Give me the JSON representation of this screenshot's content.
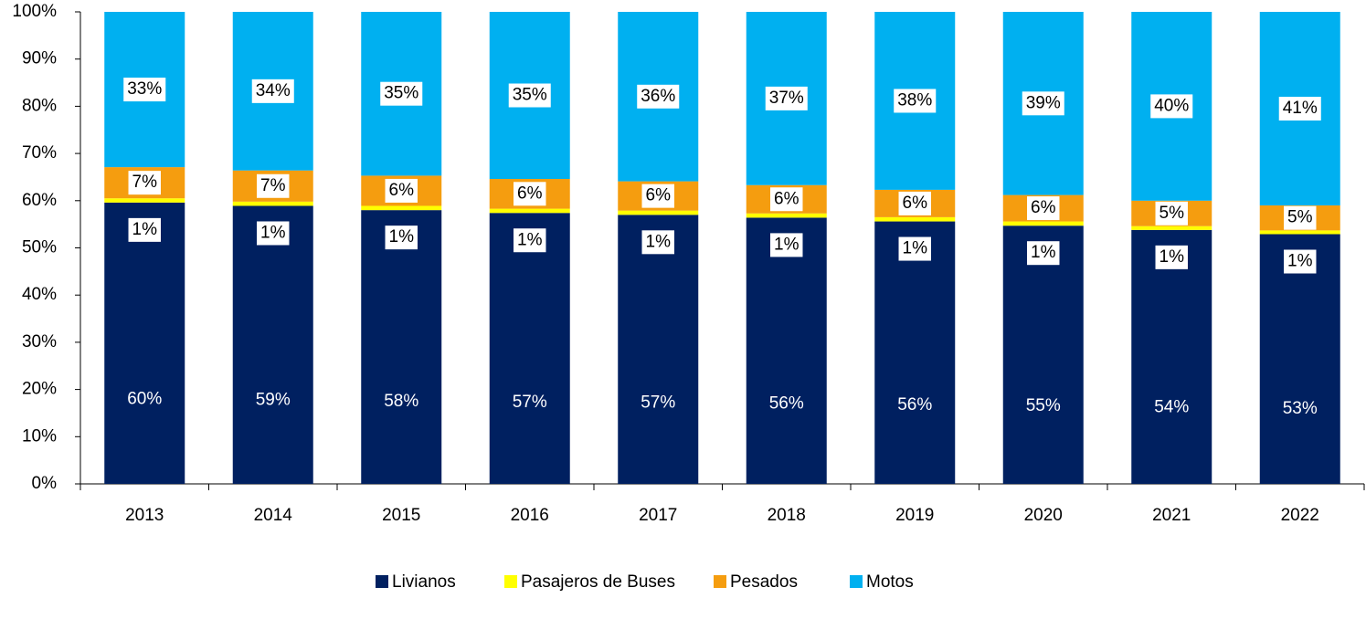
{
  "chart_data": {
    "type": "stacked_bar",
    "categories": [
      "2013",
      "2014",
      "2015",
      "2016",
      "2017",
      "2018",
      "2019",
      "2020",
      "2021",
      "2022"
    ],
    "series": [
      {
        "name": "Livianos",
        "color": "#002060",
        "values": [
          59.6,
          58.9,
          58.0,
          57.4,
          57.0,
          56.4,
          55.6,
          54.7,
          53.8,
          52.9
        ],
        "value_labels": [
          "60%",
          "59%",
          "58%",
          "57%",
          "57%",
          "56%",
          "56%",
          "55%",
          "54%",
          "53%"
        ]
      },
      {
        "name": "Pasajeros de Buses",
        "color": "#ffff00",
        "values": [
          0.9,
          0.9,
          0.9,
          0.9,
          0.9,
          0.9,
          0.9,
          0.9,
          0.8,
          0.8
        ],
        "value_labels": [
          "1%",
          "1%",
          "1%",
          "1%",
          "1%",
          "1%",
          "1%",
          "1%",
          "1%",
          "1%"
        ]
      },
      {
        "name": "Pesados",
        "color": "#f59d0f",
        "values": [
          6.6,
          6.6,
          6.4,
          6.3,
          6.2,
          6.0,
          5.8,
          5.6,
          5.4,
          5.3
        ],
        "value_labels": [
          "7%",
          "7%",
          "6%",
          "6%",
          "6%",
          "6%",
          "6%",
          "6%",
          "5%",
          "5%"
        ]
      },
      {
        "name": "Motos",
        "color": "#00b0f0",
        "values": [
          32.9,
          33.6,
          34.7,
          35.4,
          35.9,
          36.7,
          37.7,
          38.8,
          40.0,
          41.0
        ],
        "value_labels": [
          "33%",
          "34%",
          "35%",
          "35%",
          "36%",
          "37%",
          "38%",
          "39%",
          "40%",
          "41%"
        ]
      }
    ],
    "ylim": [
      0,
      100
    ],
    "yticks": [
      {
        "value": 0,
        "label": "0%"
      },
      {
        "value": 10,
        "label": "10%"
      },
      {
        "value": 20,
        "label": "20%"
      },
      {
        "value": 30,
        "label": "30%"
      },
      {
        "value": 40,
        "label": "40%"
      },
      {
        "value": 50,
        "label": "50%"
      },
      {
        "value": 60,
        "label": "60%"
      },
      {
        "value": 70,
        "label": "70%"
      },
      {
        "value": 80,
        "label": "80%"
      },
      {
        "value": 90,
        "label": "90%"
      },
      {
        "value": 100,
        "label": "100%"
      }
    ],
    "legend": "bottom"
  }
}
